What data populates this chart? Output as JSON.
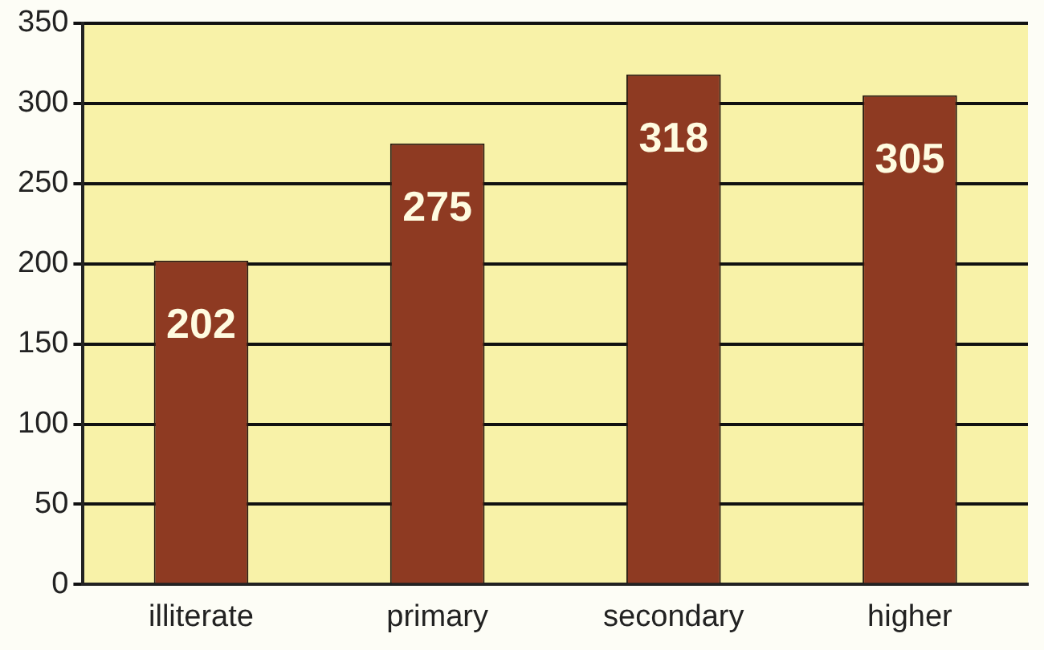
{
  "chart_data": {
    "type": "bar",
    "categories": [
      "illiterate",
      "primary",
      "secondary",
      "higher"
    ],
    "values": [
      202,
      275,
      318,
      305
    ],
    "color": "#8e3a22",
    "ylim": [
      0,
      350
    ],
    "yticks": [
      0,
      50,
      100,
      150,
      200,
      250,
      300,
      350
    ],
    "grid": "y",
    "data_labels": true,
    "legend": false
  }
}
